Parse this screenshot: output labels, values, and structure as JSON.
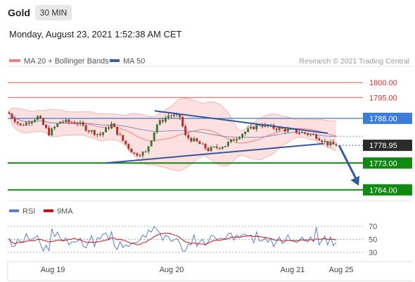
{
  "header": {
    "symbol": "Gold",
    "timeframe": "30 MIN",
    "datetime": "Monday, August 23, 2021 1:52:38 AM CET"
  },
  "colors": {
    "bollinger": "#f08080",
    "band_fill": "#fde0e0",
    "ma50": "#3a5fa0",
    "support_green": "#108a10",
    "resistance_red": "#ef5350",
    "blue_level": "#3b7dd8",
    "candle_up": "#3b7a3b",
    "candle_down": "#b0302a",
    "price_box": "#2b2b2b",
    "rsi": "#5a7fd0",
    "rsi_ma": "#d01010",
    "trend_line": "#3556a0",
    "arrow": "#2f5aa5"
  },
  "chart_data": [
    {
      "type": "candlestick",
      "legend": [
        {
          "name": "MA 20 + Bollinger Bands",
          "color": "#f08080"
        },
        {
          "name": "MA 50",
          "color": "#3a5fa0"
        }
      ],
      "watermark": "Research © 2021 Trading Central",
      "x_tick_labels": [
        "Aug 19",
        "Aug 20",
        "Aug 21",
        "Aug 25"
      ],
      "ylim": [
        1761,
        1805
      ],
      "levels": [
        {
          "value": 1800.0,
          "label": "1800.00",
          "kind": "resistance"
        },
        {
          "value": 1795.0,
          "label": "1795.00",
          "kind": "resistance"
        },
        {
          "value": 1788.0,
          "label": "1788.00",
          "kind": "pivot"
        },
        {
          "value": 1778.95,
          "label": "1778.95",
          "kind": "last-price"
        },
        {
          "value": 1773.0,
          "label": "1773.00",
          "kind": "support"
        },
        {
          "value": 1764.0,
          "label": "1764.00",
          "kind": "support"
        }
      ],
      "forecast": {
        "from": 1778.95,
        "to": 1764.0,
        "direction": "down"
      },
      "triangle": {
        "upper": {
          "start": 1790.5,
          "end": 1783.0
        },
        "lower": {
          "start": 1773.0,
          "end": 1779.5
        }
      }
    },
    {
      "type": "line",
      "legend": [
        {
          "name": "RSI",
          "color": "#5a7fd0"
        },
        {
          "name": "9MA",
          "color": "#d01010"
        }
      ],
      "y_ticks": [
        70,
        50,
        30
      ],
      "ylim": [
        30,
        70
      ]
    }
  ]
}
